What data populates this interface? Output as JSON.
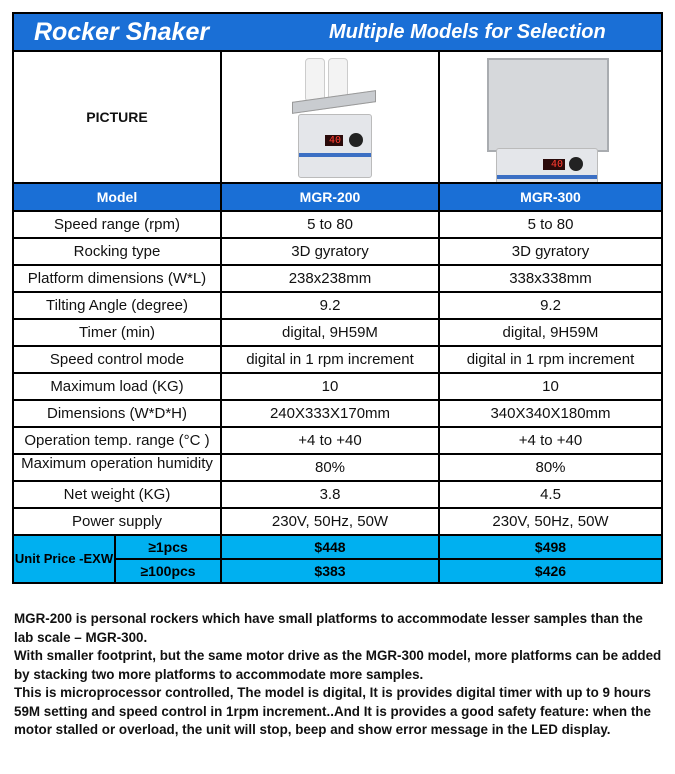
{
  "header": {
    "title": "Rocker Shaker",
    "subtitle": "Multiple Models for Selection"
  },
  "picture_label": "PICTURE",
  "model_label": "Model",
  "models": [
    "MGR-200",
    "MGR-300"
  ],
  "led_reading": "40",
  "rows": [
    {
      "label": "Speed range (rpm)",
      "v1": "5 to 80",
      "v2": "5 to 80"
    },
    {
      "label": "Rocking type",
      "v1": "3D gyratory",
      "v2": "3D gyratory"
    },
    {
      "label": "Platform dimensions (W*L)",
      "v1": "238x238mm",
      "v2": "338x338mm"
    },
    {
      "label": "Tilting Angle (degree)",
      "v1": "9.2",
      "v2": "9.2"
    },
    {
      "label": "Timer (min)",
      "v1": "digital, 9H59M",
      "v2": "digital, 9H59M"
    },
    {
      "label": "Speed control mode",
      "v1": "digital in 1 rpm increment",
      "v2": "digital in 1 rpm increment"
    },
    {
      "label": "Maximum load (KG)",
      "v1": "10",
      "v2": "10"
    },
    {
      "label": "Dimensions (W*D*H)",
      "v1": "240X333X170mm",
      "v2": "340X340X180mm"
    },
    {
      "label": "Operation temp. range (°C )",
      "v1": "+4 to +40",
      "v2": "+4 to +40"
    },
    {
      "label": "Maximum operation humidity",
      "v1": "80%",
      "v2": "80%"
    },
    {
      "label": "Net weight (KG)",
      "v1": "3.8",
      "v2": "4.5"
    },
    {
      "label": "Power supply",
      "v1": "230V, 50Hz, 50W",
      "v2": "230V, 50Hz, 50W"
    }
  ],
  "price": {
    "label": "Unit Price -EXW",
    "tiers": [
      {
        "qty": "≥1pcs",
        "v1": "$448",
        "v2": "$498"
      },
      {
        "qty": "≥100pcs",
        "v1": "$383",
        "v2": "$426"
      }
    ]
  },
  "description": [
    "MGR-200 is personal rockers which have small platforms to accommodate lesser samples than the lab scale – MGR-300.",
    "With smaller footprint, but the same motor drive as the MGR-300 model, more platforms can be added by stacking two more platforms to accommodate more samples.",
    "This is microprocessor controlled, The model is digital,  It is provides digital timer with up to 9 hours 59M setting and speed control in 1rpm increment..And It is provides a good safety feature:  when the motor stalled or overload, the unit will stop, beep and show error message in the LED display."
  ],
  "colors": {
    "header_blue": "#1a6fd6",
    "price_cyan": "#00b0f0"
  }
}
